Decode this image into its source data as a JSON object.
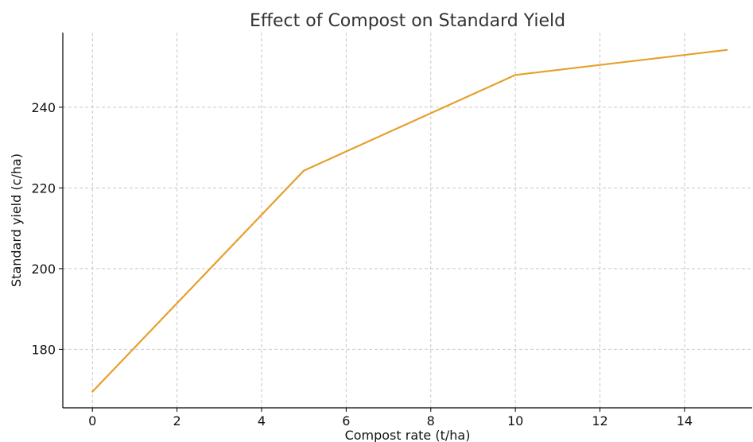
{
  "chart_data": {
    "type": "line",
    "title": "Effect of Compost on Standard Yield",
    "xlabel": "Compost rate (t/ha)",
    "ylabel": "Standard yield (c/ha)",
    "xlim": [
      -0.7,
      15.6
    ],
    "ylim": [
      165.5,
      258.5
    ],
    "xticks": [
      0,
      2,
      4,
      6,
      8,
      10,
      12,
      14
    ],
    "yticks": [
      180,
      200,
      220,
      240
    ],
    "grid": true,
    "series": [
      {
        "name": "",
        "color": "#E5A02B",
        "x": [
          0,
          5,
          10,
          15
        ],
        "y": [
          169.5,
          224.3,
          248.0,
          254.2
        ]
      }
    ]
  }
}
